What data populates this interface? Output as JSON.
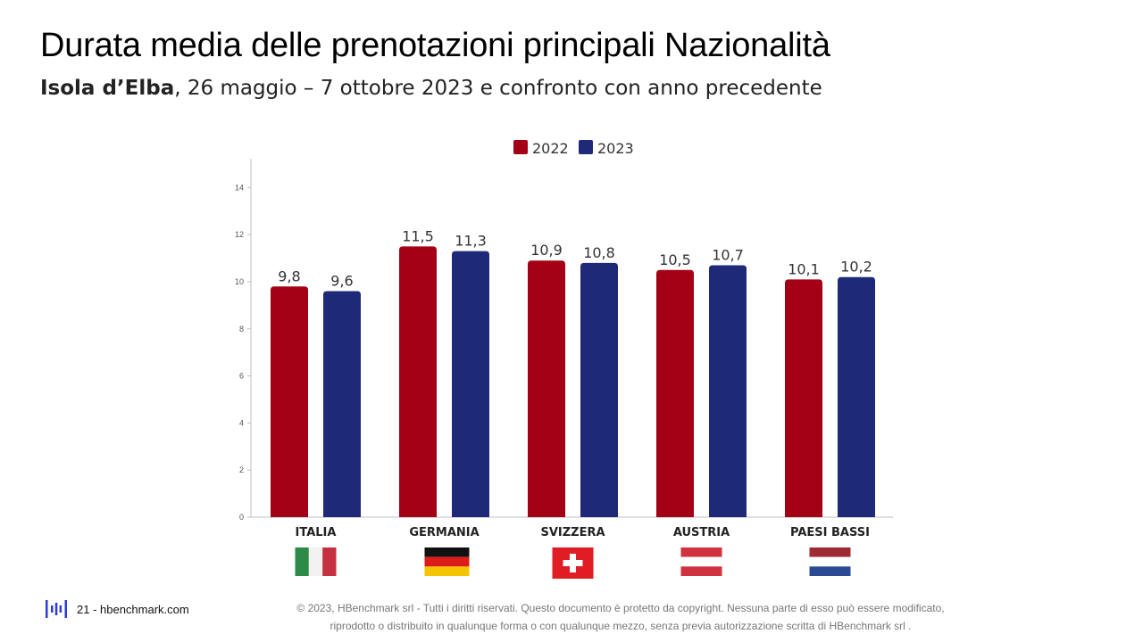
{
  "header": {
    "title": "Durata media delle prenotazioni principali Nazionalità",
    "subtitle_bold": "Isola d’Elba",
    "subtitle_rest": ", 26 maggio – 7 ottobre 2023 e confronto con anno precedente"
  },
  "chart_data": {
    "type": "bar",
    "categories": [
      "ITALIA",
      "GERMANIA",
      "SVIZZERA",
      "AUSTRIA",
      "PAESI BASSI"
    ],
    "series": [
      {
        "name": "2022",
        "color": "#a30015",
        "values": [
          9.8,
          11.5,
          10.9,
          10.5,
          10.1
        ],
        "labels": [
          "9,8",
          "11,5",
          "10,9",
          "10,5",
          "10,1"
        ]
      },
      {
        "name": "2023",
        "color": "#1e2a78",
        "values": [
          9.6,
          11.3,
          10.8,
          10.7,
          10.2
        ],
        "labels": [
          "9,6",
          "11,3",
          "10,8",
          "10,7",
          "10,2"
        ]
      }
    ],
    "yticks": [
      0,
      2,
      4,
      6,
      8,
      10,
      12,
      14
    ],
    "ylim": [
      0,
      15
    ],
    "legend": "top-center",
    "grid": false,
    "flags": [
      "italy-flag-icon",
      "germany-flag-icon",
      "switzerland-flag-icon",
      "austria-flag-icon",
      "netherlands-flag-icon"
    ]
  },
  "footer": {
    "logo": "hbenchmark-logo-icon",
    "page": "21 - hbenchmark.com",
    "copyright_line1": "© 2023, HBenchmark srl - Tutti i diritti riservati. Questo documento è protetto da copyright. Nessuna parte di esso può essere modificato,",
    "copyright_line2": "riprodotto o distribuito in qualunque forma o con qualunque mezzo, senza previa autorizzazione scritta di HBenchmark srl ."
  }
}
